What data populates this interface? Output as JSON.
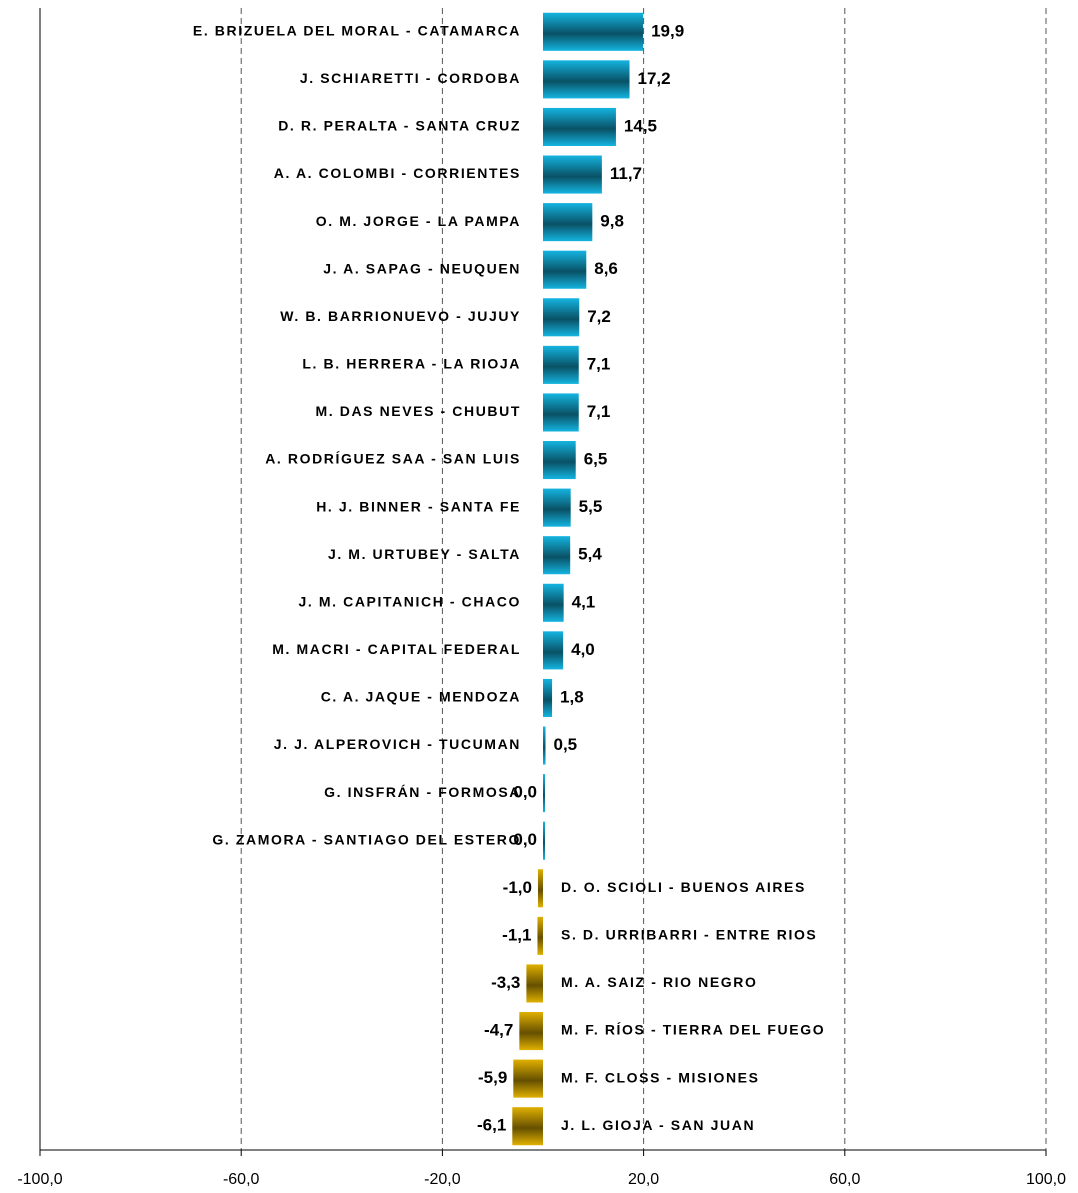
{
  "chart_data": {
    "type": "bar",
    "orientation": "horizontal",
    "categories": [
      "E. BRIZUELA DEL MORAL - CATAMARCA",
      "J. SCHIARETTI - CORDOBA",
      "D. R. PERALTA - SANTA CRUZ",
      "A. A. COLOMBI - CORRIENTES",
      "O. M. JORGE - LA PAMPA",
      "J. A. SAPAG - NEUQUEN",
      "W. B. BARRIONUEVO - JUJUY",
      "L. B. HERRERA - LA RIOJA",
      "M. DAS NEVES - CHUBUT",
      "A. RODRÍGUEZ SAA - SAN LUIS",
      "H. J. BINNER - SANTA FE",
      "J. M. URTUBEY - SALTA",
      "J. M. CAPITANICH - CHACO",
      "M. MACRI - CAPITAL FEDERAL",
      "C. A. JAQUE - MENDOZA",
      "J. J. ALPEROVICH - TUCUMAN",
      "G. INSFRÁN - FORMOSA",
      "G. ZAMORA - SANTIAGO DEL ESTERO",
      "D. O. SCIOLI - BUENOS AIRES",
      "S. D. URRIBARRI - ENTRE RIOS",
      "M. A. SAIZ - RIO NEGRO",
      "M. F. RÍOS - TIERRA DEL FUEGO",
      "M. F. CLOSS - MISIONES",
      "J. L. GIOJA - SAN JUAN"
    ],
    "values": [
      19.9,
      17.2,
      14.5,
      11.7,
      9.8,
      8.6,
      7.2,
      7.1,
      7.1,
      6.5,
      5.5,
      5.4,
      4.1,
      4.0,
      1.8,
      0.5,
      0.0,
      0.0,
      -1.0,
      -1.1,
      -3.3,
      -4.7,
      -5.9,
      -6.1
    ],
    "value_labels": [
      "19,9",
      "17,2",
      "14,5",
      "11,7",
      "9,8",
      "8,6",
      "7,2",
      "7,1",
      "7,1",
      "6,5",
      "5,5",
      "5,4",
      "4,1",
      "4,0",
      "1,8",
      "0,5",
      "0,0",
      "0,0",
      "-1,0",
      "-1,1",
      "-3,3",
      "-4,7",
      "-5,9",
      "-6,1"
    ],
    "positive_color": "#14b4e0",
    "negative_color": "#e0b000",
    "xlim": [
      -100,
      100
    ],
    "xticks": [
      {
        "value": -100,
        "label": "-100,0"
      },
      {
        "value": -60,
        "label": "-60,0"
      },
      {
        "value": -20,
        "label": "-20,0"
      },
      {
        "value": 20,
        "label": "20,0"
      },
      {
        "value": 60,
        "label": "60,0"
      },
      {
        "value": 100,
        "label": "100,0"
      }
    ],
    "grid": true
  }
}
